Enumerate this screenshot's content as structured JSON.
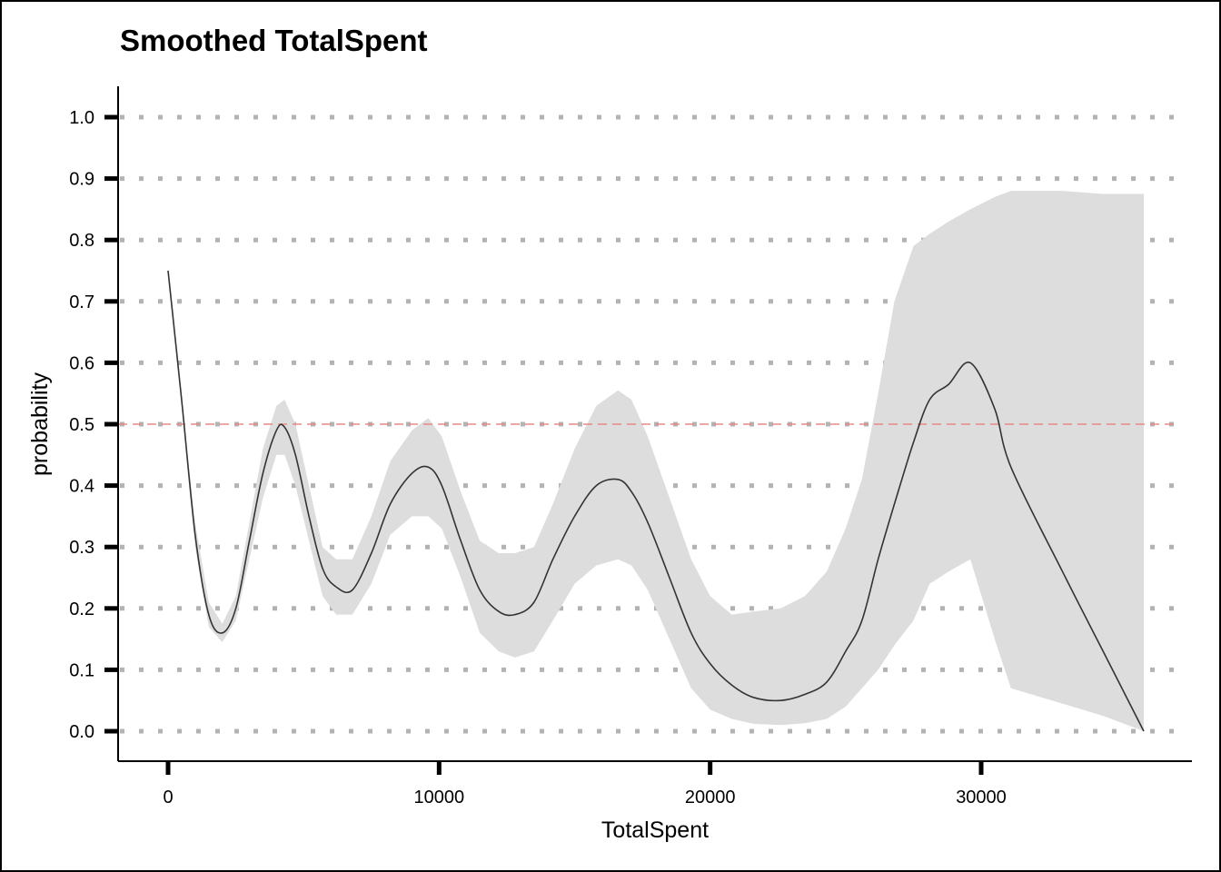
{
  "chart_data": {
    "type": "line",
    "title": "Smoothed TotalSpent",
    "xlabel": "TotalSpent",
    "ylabel": "probability",
    "xlim": [
      -1800,
      38000
    ],
    "ylim": [
      -0.05,
      1.05
    ],
    "x_ticks": [
      0,
      10000,
      20000,
      30000
    ],
    "x_tick_labels": [
      "0",
      "10000",
      "20000",
      "30000"
    ],
    "y_ticks": [
      0.0,
      0.1,
      0.2,
      0.3,
      0.4,
      0.5,
      0.6,
      0.7,
      0.8,
      0.9,
      1.0
    ],
    "y_tick_labels": [
      "0.0",
      "0.1",
      "0.2",
      "0.3",
      "0.4",
      "0.5",
      "0.6",
      "0.7",
      "0.8",
      "0.9",
      "1.0"
    ],
    "grid": "horizontal dotted",
    "reference_line": {
      "y": 0.5,
      "style": "dashed",
      "color": "#e88a8a"
    },
    "colors": {
      "line": "#333333",
      "band": "#dddddd",
      "grid": "#b3b3b3",
      "axis": "#000000"
    },
    "series": [
      {
        "x": [
          0,
          500,
          1000,
          1500,
          2000,
          2500,
          3000,
          3500,
          4000,
          4300,
          4700,
          5200,
          5700,
          6200,
          6800,
          7500,
          8200,
          9000,
          9600,
          10100,
          10800,
          11500,
          12200,
          12800,
          13500,
          14200,
          15000,
          15800,
          16600,
          17100,
          17700,
          18500,
          19300,
          20000,
          20800,
          21600,
          22600,
          23500,
          24300,
          25000,
          25600,
          26200,
          26800,
          27500,
          28100,
          28800,
          29600,
          30500,
          31100,
          33000,
          34500,
          36000
        ],
        "y": [
          0.75,
          0.54,
          0.32,
          0.19,
          0.16,
          0.2,
          0.31,
          0.42,
          0.49,
          0.495,
          0.45,
          0.35,
          0.265,
          0.235,
          0.23,
          0.29,
          0.37,
          0.42,
          0.43,
          0.4,
          0.31,
          0.23,
          0.195,
          0.19,
          0.21,
          0.28,
          0.35,
          0.4,
          0.41,
          0.39,
          0.34,
          0.25,
          0.16,
          0.11,
          0.075,
          0.055,
          0.05,
          0.06,
          0.08,
          0.13,
          0.18,
          0.28,
          0.37,
          0.47,
          0.54,
          0.565,
          0.6,
          0.525,
          0.43,
          0.26,
          0.13,
          0.0
        ],
        "lower": [
          0.75,
          0.54,
          0.3,
          0.17,
          0.145,
          0.18,
          0.28,
          0.38,
          0.45,
          0.45,
          0.4,
          0.31,
          0.22,
          0.19,
          0.19,
          0.24,
          0.32,
          0.35,
          0.35,
          0.33,
          0.25,
          0.16,
          0.13,
          0.12,
          0.13,
          0.18,
          0.24,
          0.27,
          0.28,
          0.27,
          0.23,
          0.15,
          0.07,
          0.035,
          0.02,
          0.012,
          0.01,
          0.013,
          0.02,
          0.04,
          0.07,
          0.1,
          0.14,
          0.18,
          0.24,
          0.26,
          0.28,
          0.15,
          0.07,
          0.045,
          0.025,
          0.0
        ],
        "upper": [
          0.75,
          0.54,
          0.34,
          0.21,
          0.175,
          0.22,
          0.34,
          0.46,
          0.53,
          0.54,
          0.5,
          0.4,
          0.3,
          0.28,
          0.28,
          0.35,
          0.44,
          0.49,
          0.51,
          0.48,
          0.39,
          0.31,
          0.29,
          0.29,
          0.3,
          0.37,
          0.46,
          0.53,
          0.555,
          0.54,
          0.48,
          0.38,
          0.28,
          0.22,
          0.19,
          0.195,
          0.2,
          0.22,
          0.26,
          0.33,
          0.41,
          0.55,
          0.7,
          0.79,
          0.81,
          0.83,
          0.85,
          0.87,
          0.88,
          0.88,
          0.875,
          0.875
        ]
      }
    ]
  }
}
